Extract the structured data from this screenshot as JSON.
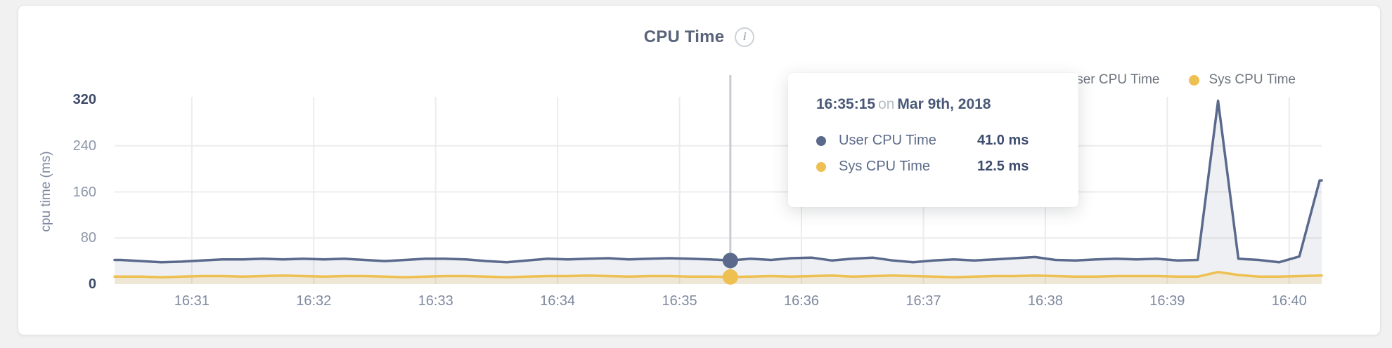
{
  "header": {
    "title": "CPU Time",
    "info_icon": "info-icon"
  },
  "colors": {
    "user_line": "#5a698c",
    "user_fill": "rgba(90,105,140,0.10)",
    "sys_line": "#eec051",
    "sys_fill": "rgba(238,192,81,0.18)",
    "grid": "#ececec",
    "hover_line": "#c7cbd1",
    "card_bg": "#ffffff",
    "page_bg": "#f1f1f2"
  },
  "tooltip": {
    "time": "16:35:15",
    "on": "on",
    "date": "Mar 9th, 2018",
    "rows": [
      {
        "label": "User CPU Time",
        "value": "41.0 ms",
        "color": "#5a698c"
      },
      {
        "label": "Sys CPU Time",
        "value": "12.5 ms",
        "color": "#eec051"
      }
    ]
  },
  "chart_data": {
    "type": "area",
    "title": "CPU Time",
    "xlabel": "",
    "ylabel": "cpu time (ms)",
    "ylim": [
      0,
      320
    ],
    "yticks": [
      0,
      80,
      160,
      240,
      320
    ],
    "x_tick_labels": [
      "16:31",
      "16:32",
      "16:33",
      "16:34",
      "16:35",
      "16:36",
      "16:37",
      "16:38",
      "16:39",
      "16:40"
    ],
    "x_start_time": "16:30:25",
    "x_interval_seconds": 10,
    "grid": true,
    "legend_position": "top-right",
    "series": [
      {
        "name": "User CPU Time",
        "color": "#5a698c",
        "values": [
          42,
          40,
          38,
          39,
          41,
          43,
          43,
          44,
          43,
          44,
          43,
          44,
          42,
          40,
          42,
          44,
          44,
          43,
          40,
          38,
          41,
          44,
          43,
          44,
          45,
          43,
          44,
          45,
          44,
          43,
          41,
          44,
          42,
          45,
          46,
          41,
          44,
          46,
          41,
          38,
          41,
          43,
          41,
          43,
          45,
          47,
          42,
          41,
          43,
          44,
          43,
          44,
          41,
          42,
          318,
          44,
          42,
          38,
          48,
          180
        ]
      },
      {
        "name": "Sys CPU Time",
        "color": "#eec051",
        "values": [
          13,
          13,
          12,
          13,
          14,
          14,
          13,
          14,
          15,
          14,
          13,
          14,
          14,
          13,
          12,
          13,
          14,
          14,
          13,
          12,
          13,
          14,
          14,
          15,
          14,
          13,
          14,
          14,
          13,
          13,
          12.5,
          13,
          14,
          13,
          14,
          15,
          13,
          14,
          15,
          14,
          13,
          12,
          13,
          14,
          14,
          15,
          14,
          13,
          13,
          14,
          14,
          14,
          13,
          13,
          21,
          16,
          13,
          13,
          14,
          15
        ]
      }
    ],
    "hover": {
      "index": 30,
      "time": "16:35:15",
      "date": "Mar 9th, 2018",
      "user_ms": 41.0,
      "sys_ms": 12.5
    }
  }
}
